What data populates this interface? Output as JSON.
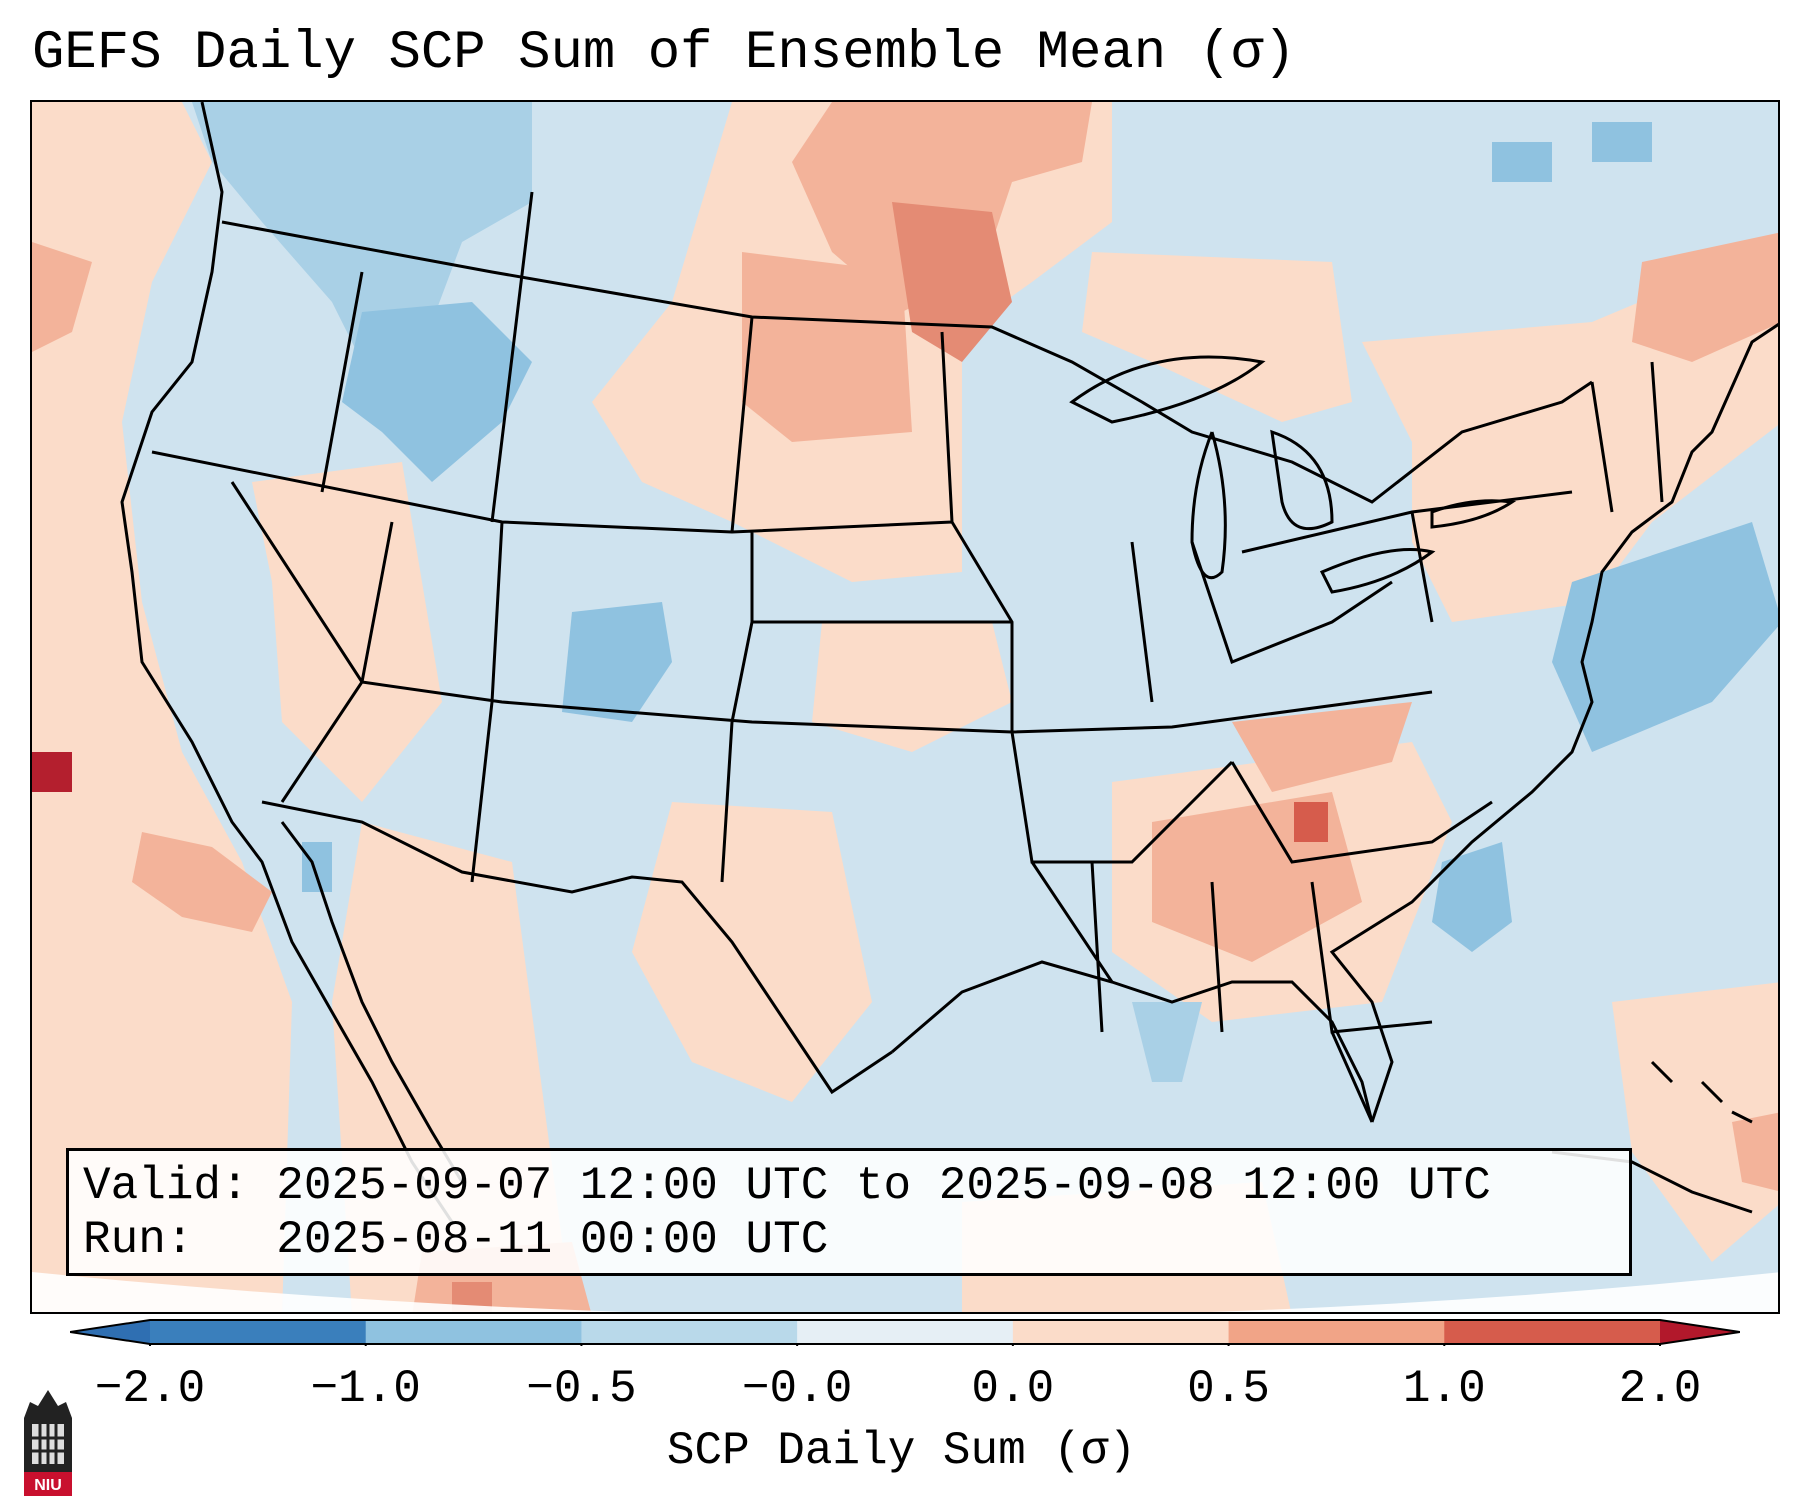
{
  "title": "GEFS Daily SCP Sum of Ensemble Mean (σ)",
  "info": {
    "valid_line": "Valid: 2025-09-07 12:00 UTC to 2025-09-08 12:00 UTC",
    "run_line": "Run:   2025-08-11 00:00 UTC"
  },
  "colorbar": {
    "label": "SCP Daily Sum (σ)",
    "ticks": [
      "−2.0",
      "−1.0",
      "−0.5",
      "−0.0",
      "0.0",
      "0.5",
      "1.0",
      "2.0"
    ],
    "colors": [
      "#3a7fbc",
      "#6eaed6",
      "#a9d0e6",
      "#ddecf4",
      "#fbdcc9",
      "#f1a487",
      "#d65c4c",
      "#b41f2e"
    ],
    "under_color": "#2f6fb2",
    "over_color": "#b2182b"
  },
  "map": {
    "background_color": "#cfe3ef",
    "region": "Contiguous United States",
    "regions": [
      {
        "name": "northern-plains-positive",
        "category": "1.0",
        "color": "#e48b74"
      },
      {
        "name": "dakotas-positive",
        "category": "0.5",
        "color": "#f3b39a"
      },
      {
        "name": "great-lakes-positive",
        "category": "0.0",
        "color": "#fbdcc9"
      },
      {
        "name": "northeast-positive",
        "category": "0.0",
        "color": "#fbdcc9"
      },
      {
        "name": "southeast-positive",
        "category": "0.5",
        "color": "#f3b39a"
      },
      {
        "name": "georgia-max",
        "category": "1.0",
        "color": "#d65c4c"
      },
      {
        "name": "pacific-positive",
        "category": "0.5",
        "color": "#f3b39a"
      },
      {
        "name": "pacific-max",
        "category": "2.0",
        "color": "#b41f2e"
      },
      {
        "name": "colorado-negative",
        "category": "-0.5",
        "color": "#8fc2e0"
      },
      {
        "name": "northwest-negative",
        "category": "-0.5",
        "color": "#8fc2e0"
      },
      {
        "name": "atlantic-negative",
        "category": "-0.5",
        "color": "#8fc2e0"
      }
    ]
  },
  "logo": {
    "text": "NIU"
  }
}
